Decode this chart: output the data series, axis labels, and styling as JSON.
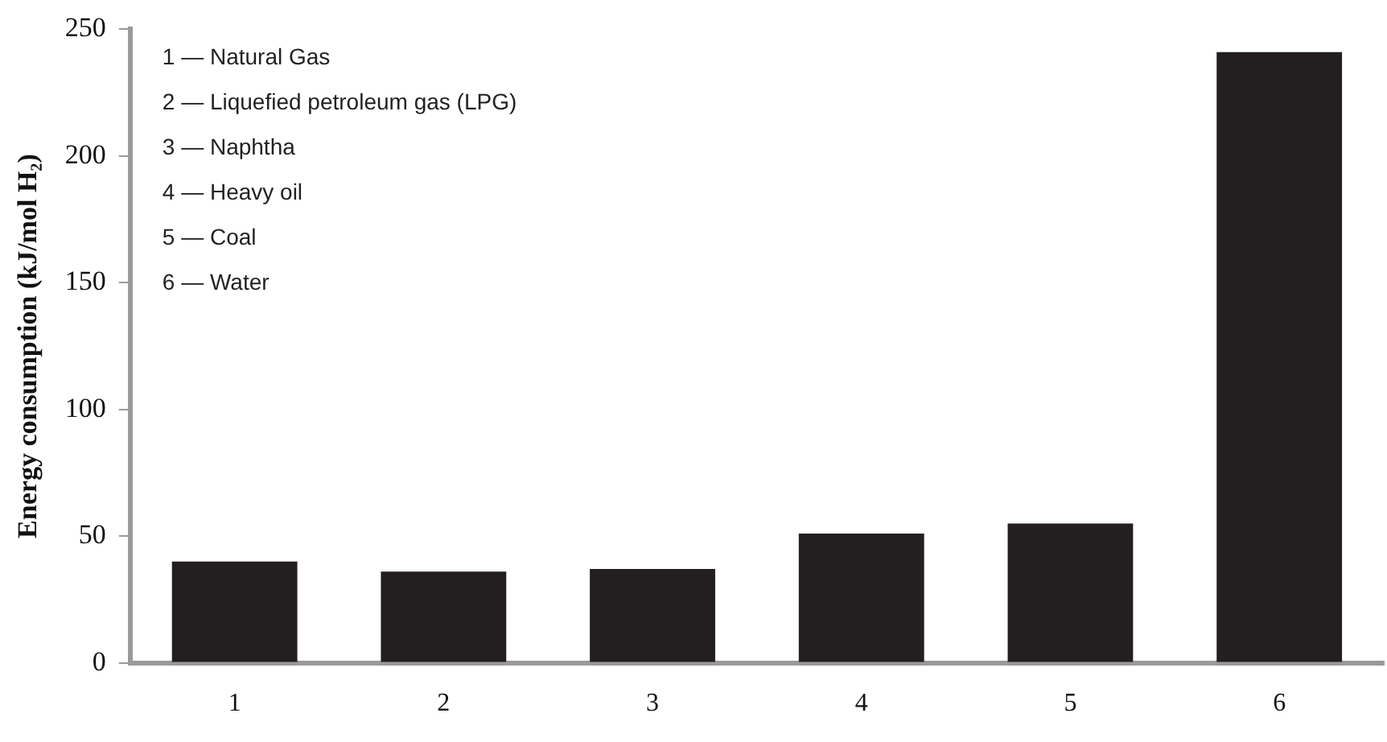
{
  "chart_data": {
    "type": "bar",
    "ylabel": "Energy consumption (kJ/mol H₂)",
    "categories": [
      "1",
      "2",
      "3",
      "4",
      "5",
      "6"
    ],
    "values": [
      40,
      36,
      37,
      51,
      55,
      241
    ],
    "color": "#231f20",
    "ylim": [
      0,
      250
    ],
    "yticks": [
      0,
      50,
      100,
      150,
      200,
      250
    ],
    "grid": false,
    "legend": false,
    "annotations": [
      "1 — Natural Gas",
      "2 — Liquefied petroleum gas (LPG)",
      "3 — Naphtha",
      "4 — Heavy oil",
      "5 — Coal",
      "6 — Water"
    ]
  }
}
